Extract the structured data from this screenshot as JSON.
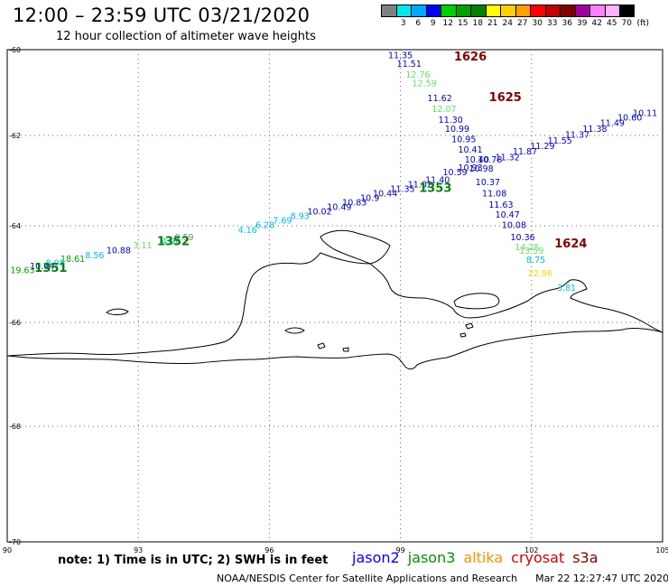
{
  "header": {
    "title": "12:00 – 23:59 UTC 03/21/2020",
    "subtitle": "12 hour collection of altimeter wave heights"
  },
  "legend": {
    "unit": "(ft)",
    "colors": [
      "#808080",
      "#00e8e8",
      "#00a8ff",
      "#0000ff",
      "#00d000",
      "#00a000",
      "#008000",
      "#ffff00",
      "#ffd000",
      "#ffa000",
      "#ff0000",
      "#c00000",
      "#800000",
      "#a000a0",
      "#ff80ff",
      "#ffb0ff",
      "#000000"
    ],
    "labels": [
      "3",
      "6",
      "9",
      "12",
      "15",
      "18",
      "21",
      "24",
      "27",
      "30",
      "33",
      "36",
      "39",
      "42",
      "45",
      "70"
    ]
  },
  "map": {
    "x_axis": {
      "ticks": [
        "90",
        "93",
        "96",
        "99",
        "102",
        "105"
      ]
    },
    "y_axis": {
      "ticks": [
        "-60",
        "-62",
        "-64",
        "-66",
        "-68",
        "-70"
      ]
    },
    "grid": "dotted",
    "track_labels": [
      {
        "id": "time-1626",
        "text": "1626",
        "color": "#800000",
        "lon": 100.6,
        "lat": -60.25,
        "size": 13,
        "bold": true
      },
      {
        "id": "time-1625",
        "text": "1625",
        "color": "#800000",
        "lon": 101.4,
        "lat": -61.2,
        "size": 13,
        "bold": true
      },
      {
        "id": "time-1624",
        "text": "1624",
        "color": "#800000",
        "lon": 102.9,
        "lat": -64.45,
        "size": 13,
        "bold": true
      },
      {
        "id": "time-1353",
        "text": "1353",
        "color": "#008000",
        "lon": 99.8,
        "lat": -63.25,
        "size": 13,
        "bold": true
      },
      {
        "id": "time-1352",
        "text": "1352",
        "color": "#008000",
        "lon": 93.8,
        "lat": -64.4,
        "size": 13,
        "bold": true
      },
      {
        "id": "time-1351",
        "text": "1351",
        "color": "#008000",
        "lon": 91.0,
        "lat": -64.95,
        "size": 13,
        "bold": true
      }
    ],
    "obs": [
      {
        "text": "11.35",
        "color": "#0000c0",
        "lon": 99.0,
        "lat": -60.2
      },
      {
        "text": "11.51",
        "color": "#0000c0",
        "lon": 99.2,
        "lat": -60.4
      },
      {
        "text": "12.76",
        "color": "#66dd66",
        "lon": 99.4,
        "lat": -60.65
      },
      {
        "text": "12.59",
        "color": "#66dd66",
        "lon": 99.55,
        "lat": -60.85
      },
      {
        "text": "11.62",
        "color": "#0000c0",
        "lon": 99.9,
        "lat": -61.2
      },
      {
        "text": "12.07",
        "color": "#66dd66",
        "lon": 100.0,
        "lat": -61.45
      },
      {
        "text": "11.30",
        "color": "#0000c0",
        "lon": 100.15,
        "lat": -61.7
      },
      {
        "text": "10.99",
        "color": "#0000c0",
        "lon": 100.3,
        "lat": -61.92
      },
      {
        "text": "10.95",
        "color": "#0000c0",
        "lon": 100.45,
        "lat": -62.15
      },
      {
        "text": "10.41",
        "color": "#0000c0",
        "lon": 100.6,
        "lat": -62.38
      },
      {
        "text": "10.40",
        "color": "#0000c0",
        "lon": 100.75,
        "lat": -62.6
      },
      {
        "text": "10.98",
        "color": "#0000c0",
        "lon": 100.85,
        "lat": -62.8
      },
      {
        "text": "10.37",
        "color": "#0000c0",
        "lon": 101.0,
        "lat": -63.1
      },
      {
        "text": "11.08",
        "color": "#0000c0",
        "lon": 101.15,
        "lat": -63.35
      },
      {
        "text": "11.63",
        "color": "#0000c0",
        "lon": 101.3,
        "lat": -63.6
      },
      {
        "text": "10.47",
        "color": "#0000c0",
        "lon": 101.45,
        "lat": -63.82
      },
      {
        "text": "10.08",
        "color": "#0000c0",
        "lon": 101.6,
        "lat": -64.05
      },
      {
        "text": "10.36",
        "color": "#0000c0",
        "lon": 101.8,
        "lat": -64.3
      },
      {
        "text": "14.25",
        "color": "#66dd66",
        "lon": 101.9,
        "lat": -64.5
      },
      {
        "text": "13.59",
        "color": "#66dd66",
        "lon": 102.0,
        "lat": -64.58
      },
      {
        "text": "8.75",
        "color": "#00b8e8",
        "lon": 102.1,
        "lat": -64.77
      },
      {
        "text": "22.96",
        "color": "#f0d800",
        "lon": 102.2,
        "lat": -65.05
      },
      {
        "text": "3.81",
        "color": "#00c8c8",
        "lon": 102.8,
        "lat": -65.35
      },
      {
        "text": "10.78",
        "color": "#0000c0",
        "lon": 101.05,
        "lat": -62.6
      },
      {
        "text": "11.32",
        "color": "#0000c0",
        "lon": 101.45,
        "lat": -62.55
      },
      {
        "text": "11.87",
        "color": "#0000c0",
        "lon": 101.85,
        "lat": -62.42
      },
      {
        "text": "11.29",
        "color": "#0000c0",
        "lon": 102.25,
        "lat": -62.3
      },
      {
        "text": "11.55",
        "color": "#0000c0",
        "lon": 102.65,
        "lat": -62.18
      },
      {
        "text": "11.37",
        "color": "#0000c0",
        "lon": 103.05,
        "lat": -62.05
      },
      {
        "text": "11.38",
        "color": "#0000c0",
        "lon": 103.45,
        "lat": -61.92
      },
      {
        "text": "11.49",
        "color": "#0000c0",
        "lon": 103.85,
        "lat": -61.78
      },
      {
        "text": "10.60",
        "color": "#0000c0",
        "lon": 104.25,
        "lat": -61.65
      },
      {
        "text": "10.11",
        "color": "#0000c0",
        "lon": 104.6,
        "lat": -61.55
      },
      {
        "text": "10.59",
        "color": "#0000c0",
        "lon": 100.25,
        "lat": -62.88
      },
      {
        "text": "10.93",
        "color": "#0000c0",
        "lon": 100.6,
        "lat": -62.78
      },
      {
        "text": "11.40",
        "color": "#0000c0",
        "lon": 99.85,
        "lat": -63.05
      },
      {
        "text": "11.02",
        "color": "#0000c0",
        "lon": 99.45,
        "lat": -63.15
      },
      {
        "text": "11.35",
        "color": "#0000c0",
        "lon": 99.05,
        "lat": -63.25
      },
      {
        "text": "10.44",
        "color": "#0000c0",
        "lon": 98.65,
        "lat": -63.35
      },
      {
        "text": "10.9",
        "color": "#0000c0",
        "lon": 98.3,
        "lat": -63.45
      },
      {
        "text": "10.83",
        "color": "#0000c0",
        "lon": 97.95,
        "lat": -63.55
      },
      {
        "text": "10.49",
        "color": "#0000c0",
        "lon": 97.6,
        "lat": -63.65
      },
      {
        "text": "10.02",
        "color": "#0000c0",
        "lon": 97.15,
        "lat": -63.75
      },
      {
        "text": "8.93",
        "color": "#00b8e8",
        "lon": 96.7,
        "lat": -63.85
      },
      {
        "text": "7.69",
        "color": "#00b8e8",
        "lon": 96.3,
        "lat": -63.95
      },
      {
        "text": "6.28",
        "color": "#00b8e8",
        "lon": 95.9,
        "lat": -64.05
      },
      {
        "text": "4.16",
        "color": "#00c8c8",
        "lon": 95.5,
        "lat": -64.15
      },
      {
        "text": "0.59",
        "color": "#808080",
        "lon": 94.05,
        "lat": -64.3
      },
      {
        "text": "4.96",
        "color": "#00c8c8",
        "lon": 93.75,
        "lat": -64.38
      },
      {
        "text": "3.11",
        "color": "#66dd66",
        "lon": 93.1,
        "lat": -64.47
      },
      {
        "text": "10.88",
        "color": "#0000c0",
        "lon": 92.55,
        "lat": -64.57
      },
      {
        "text": "8.56",
        "color": "#00b8e8",
        "lon": 92.0,
        "lat": -64.67
      },
      {
        "text": "18.61",
        "color": "#00a000",
        "lon": 91.5,
        "lat": -64.75
      },
      {
        "text": "8.98",
        "color": "#00b8e8",
        "lon": 91.1,
        "lat": -64.83
      },
      {
        "text": "10.64",
        "color": "#0000c0",
        "lon": 90.8,
        "lat": -64.9
      },
      {
        "text": "19.63",
        "color": "#00a000",
        "lon": 90.35,
        "lat": -64.98
      }
    ]
  },
  "footer": {
    "note": "note: 1) Time is in UTC; 2) SWH is in feet",
    "satellites": [
      {
        "name": "jason2",
        "color": "#0000ff"
      },
      {
        "name": "jason3",
        "color": "#009000"
      },
      {
        "name": "altika",
        "color": "#ff9000"
      },
      {
        "name": "cryosat",
        "color": "#d00000"
      },
      {
        "name": "s3a",
        "color": "#800000"
      }
    ],
    "credit": "NOAA/NESDIS Center for Satellite Applications and Research",
    "timestamp": "Mar 22 12:27:47 UTC 2020"
  }
}
